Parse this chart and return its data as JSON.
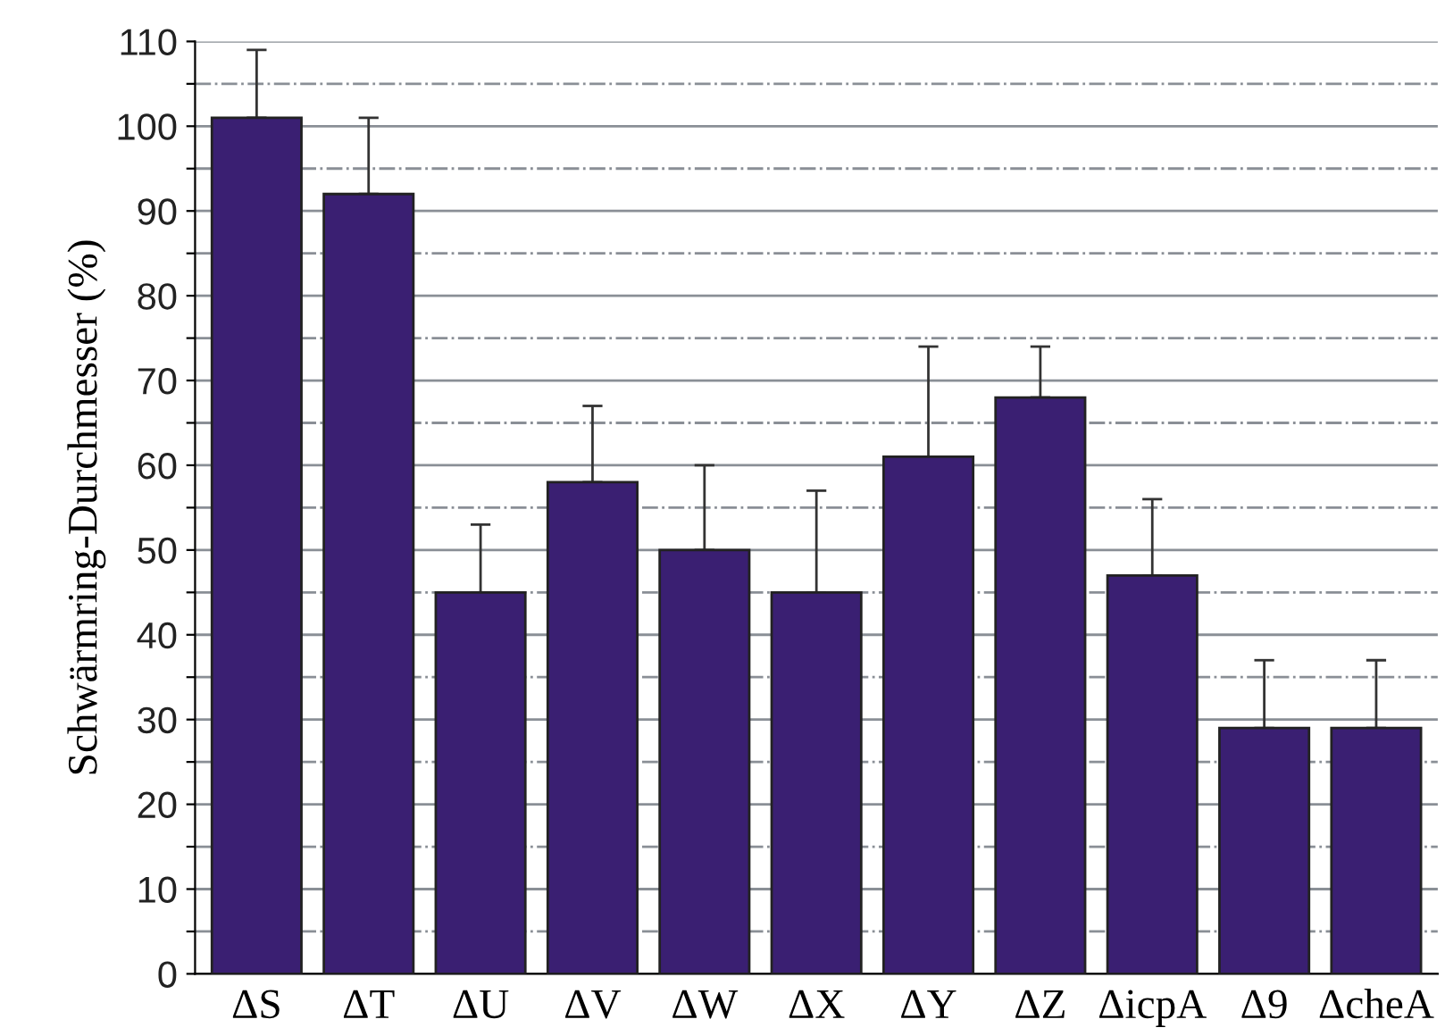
{
  "chart_data": {
    "type": "bar",
    "ylabel": "Schwärmring-Durchmesser (%)",
    "categories": [
      "ΔS",
      "ΔT",
      "ΔU",
      "ΔV",
      "ΔW",
      "ΔX",
      "ΔY",
      "ΔZ",
      "ΔicpA",
      "Δ9",
      "ΔcheA"
    ],
    "values": [
      101,
      92,
      45,
      58,
      50,
      45,
      61,
      68,
      47,
      29,
      29
    ],
    "errors": [
      [
        101,
        109
      ],
      [
        92,
        101
      ],
      [
        45,
        53
      ],
      [
        58,
        67
      ],
      [
        50,
        60
      ],
      [
        45,
        57
      ],
      [
        61,
        74
      ],
      [
        68,
        74
      ],
      [
        47,
        56
      ],
      [
        29,
        37
      ],
      [
        29,
        37
      ]
    ],
    "color": "#3a1f72",
    "ylim": [
      0,
      110
    ],
    "yticks": [
      0,
      {
        "value": 5,
        "label": null
      },
      10,
      {
        "value": 15,
        "label": null
      },
      20,
      {
        "value": 25,
        "label": null
      },
      30,
      {
        "value": 35,
        "label": null
      },
      40,
      {
        "value": 45,
        "label": null
      },
      50,
      {
        "value": 55,
        "label": null
      },
      60,
      {
        "value": 65,
        "label": null
      },
      70,
      {
        "value": 75,
        "label": null
      },
      80,
      {
        "value": 85,
        "label": null
      },
      90,
      {
        "value": 95,
        "label": null
      },
      100,
      {
        "value": 105,
        "label": null
      },
      110
    ],
    "grid": "y"
  }
}
